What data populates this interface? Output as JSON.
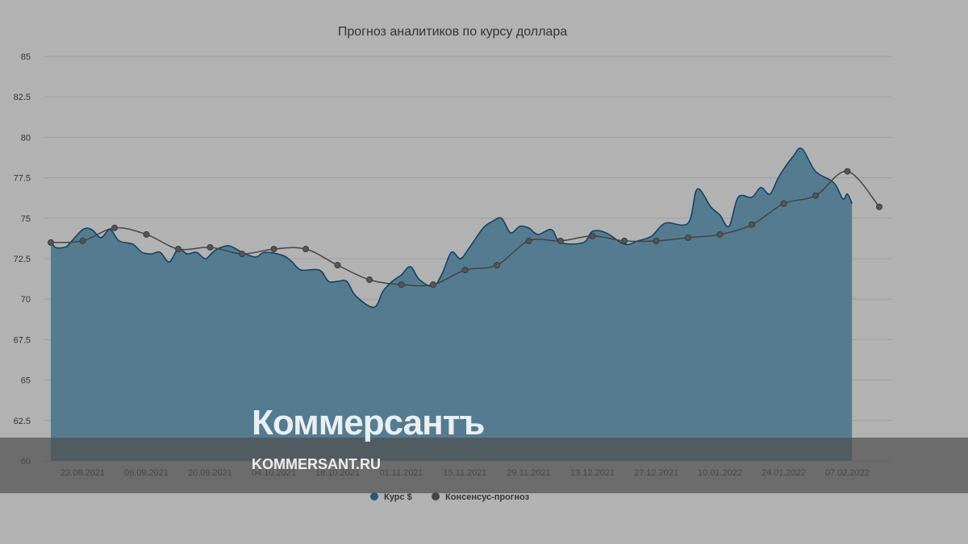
{
  "chart_data": {
    "type": "area",
    "title": "Прогноз аналитиков по курсу доллара",
    "xlabel": "",
    "ylabel": "",
    "ylim": [
      60,
      85
    ],
    "yticks": [
      "85",
      "82.5",
      "80",
      "77.5",
      "75",
      "72.5",
      "70",
      "67.5",
      "65",
      "62.5",
      "60"
    ],
    "xticks": [
      "23.08.2021",
      "06.09.2021",
      "20.09.2021",
      "04.10.2021",
      "18.10.2021",
      "01.11.2021",
      "15.11.2021",
      "29.11.2021",
      "13.12.2021",
      "27.12.2021",
      "10.01.2022",
      "24.01.2022",
      "07.02.2022"
    ],
    "grid": true,
    "legend_position": "bottom",
    "series": [
      {
        "name": "Курс $",
        "type": "area",
        "color": "#1d5a80",
        "points": [
          [
            "2021-08-16",
            73.6
          ],
          [
            "2021-08-17",
            73.2
          ],
          [
            "2021-08-19",
            73.2
          ],
          [
            "2021-08-20",
            73.4
          ],
          [
            "2021-08-23",
            74.3
          ],
          [
            "2021-08-25",
            74.3
          ],
          [
            "2021-08-27",
            73.8
          ],
          [
            "2021-08-29",
            74.3
          ],
          [
            "2021-08-31",
            73.6
          ],
          [
            "2021-09-03",
            73.4
          ],
          [
            "2021-09-05",
            72.9
          ],
          [
            "2021-09-07",
            72.8
          ],
          [
            "2021-09-09",
            72.9
          ],
          [
            "2021-09-11",
            72.3
          ],
          [
            "2021-09-13",
            73.1
          ],
          [
            "2021-09-15",
            72.8
          ],
          [
            "2021-09-17",
            72.9
          ],
          [
            "2021-09-19",
            72.5
          ],
          [
            "2021-09-21",
            73.0
          ],
          [
            "2021-09-24",
            73.3
          ],
          [
            "2021-09-27",
            72.9
          ],
          [
            "2021-09-30",
            72.6
          ],
          [
            "2021-10-02",
            72.9
          ],
          [
            "2021-10-06",
            72.7
          ],
          [
            "2021-10-08",
            72.3
          ],
          [
            "2021-10-10",
            71.8
          ],
          [
            "2021-10-14",
            71.8
          ],
          [
            "2021-10-16",
            71.1
          ],
          [
            "2021-10-18",
            71.1
          ],
          [
            "2021-10-20",
            71.1
          ],
          [
            "2021-10-22",
            70.2
          ],
          [
            "2021-10-26",
            69.5
          ],
          [
            "2021-10-28",
            70.5
          ],
          [
            "2021-10-30",
            71.1
          ],
          [
            "2021-11-01",
            71.5
          ],
          [
            "2021-11-03",
            72.0
          ],
          [
            "2021-11-05",
            71.2
          ],
          [
            "2021-11-08",
            70.8
          ],
          [
            "2021-11-10",
            71.6
          ],
          [
            "2021-11-12",
            72.9
          ],
          [
            "2021-11-14",
            72.5
          ],
          [
            "2021-11-16",
            73.2
          ],
          [
            "2021-11-19",
            74.4
          ],
          [
            "2021-11-21",
            74.8
          ],
          [
            "2021-11-23",
            75.0
          ],
          [
            "2021-11-25",
            74.1
          ],
          [
            "2021-11-27",
            74.5
          ],
          [
            "2021-11-29",
            74.4
          ],
          [
            "2021-12-01",
            74.0
          ],
          [
            "2021-12-04",
            74.3
          ],
          [
            "2021-12-06",
            73.5
          ],
          [
            "2021-12-11",
            73.5
          ],
          [
            "2021-12-13",
            74.2
          ],
          [
            "2021-12-16",
            74.1
          ],
          [
            "2021-12-20",
            73.4
          ],
          [
            "2021-12-23",
            73.6
          ],
          [
            "2021-12-26",
            73.9
          ],
          [
            "2021-12-29",
            74.7
          ],
          [
            "2022-01-03",
            74.7
          ],
          [
            "2022-01-05",
            76.8
          ],
          [
            "2022-01-08",
            75.7
          ],
          [
            "2022-01-10",
            75.2
          ],
          [
            "2022-01-12",
            74.5
          ],
          [
            "2022-01-14",
            76.3
          ],
          [
            "2022-01-17",
            76.3
          ],
          [
            "2022-01-19",
            76.9
          ],
          [
            "2022-01-21",
            76.5
          ],
          [
            "2022-01-23",
            77.6
          ],
          [
            "2022-01-26",
            78.8
          ],
          [
            "2022-01-28",
            79.3
          ],
          [
            "2022-01-31",
            77.9
          ],
          [
            "2022-02-04",
            77.2
          ],
          [
            "2022-02-06",
            76.2
          ],
          [
            "2022-02-07",
            76.5
          ],
          [
            "2022-02-08",
            75.9
          ]
        ]
      },
      {
        "name": "Консенсус-прогноз",
        "type": "line",
        "color": "#444444",
        "points": [
          [
            "2021-08-16",
            73.5
          ],
          [
            "2021-08-23",
            73.6
          ],
          [
            "2021-08-30",
            74.4
          ],
          [
            "2021-09-06",
            74.0
          ],
          [
            "2021-09-13",
            73.1
          ],
          [
            "2021-09-20",
            73.2
          ],
          [
            "2021-09-27",
            72.8
          ],
          [
            "2021-10-04",
            73.1
          ],
          [
            "2021-10-11",
            73.1
          ],
          [
            "2021-10-18",
            72.1
          ],
          [
            "2021-10-25",
            71.2
          ],
          [
            "2021-11-01",
            70.9
          ],
          [
            "2021-11-08",
            70.9
          ],
          [
            "2021-11-15",
            71.8
          ],
          [
            "2021-11-22",
            72.1
          ],
          [
            "2021-11-29",
            73.6
          ],
          [
            "2021-12-06",
            73.6
          ],
          [
            "2021-12-13",
            73.9
          ],
          [
            "2021-12-20",
            73.6
          ],
          [
            "2021-12-27",
            73.6
          ],
          [
            "2022-01-03",
            73.8
          ],
          [
            "2022-01-10",
            74.0
          ],
          [
            "2022-01-17",
            74.6
          ],
          [
            "2022-01-24",
            75.9
          ],
          [
            "2022-01-31",
            76.4
          ],
          [
            "2022-02-07",
            77.9
          ],
          [
            "2022-02-14",
            75.7
          ]
        ]
      }
    ]
  },
  "watermark": {
    "logo": "Коммерсантъ",
    "site": "KOMMERSANT.RU"
  }
}
